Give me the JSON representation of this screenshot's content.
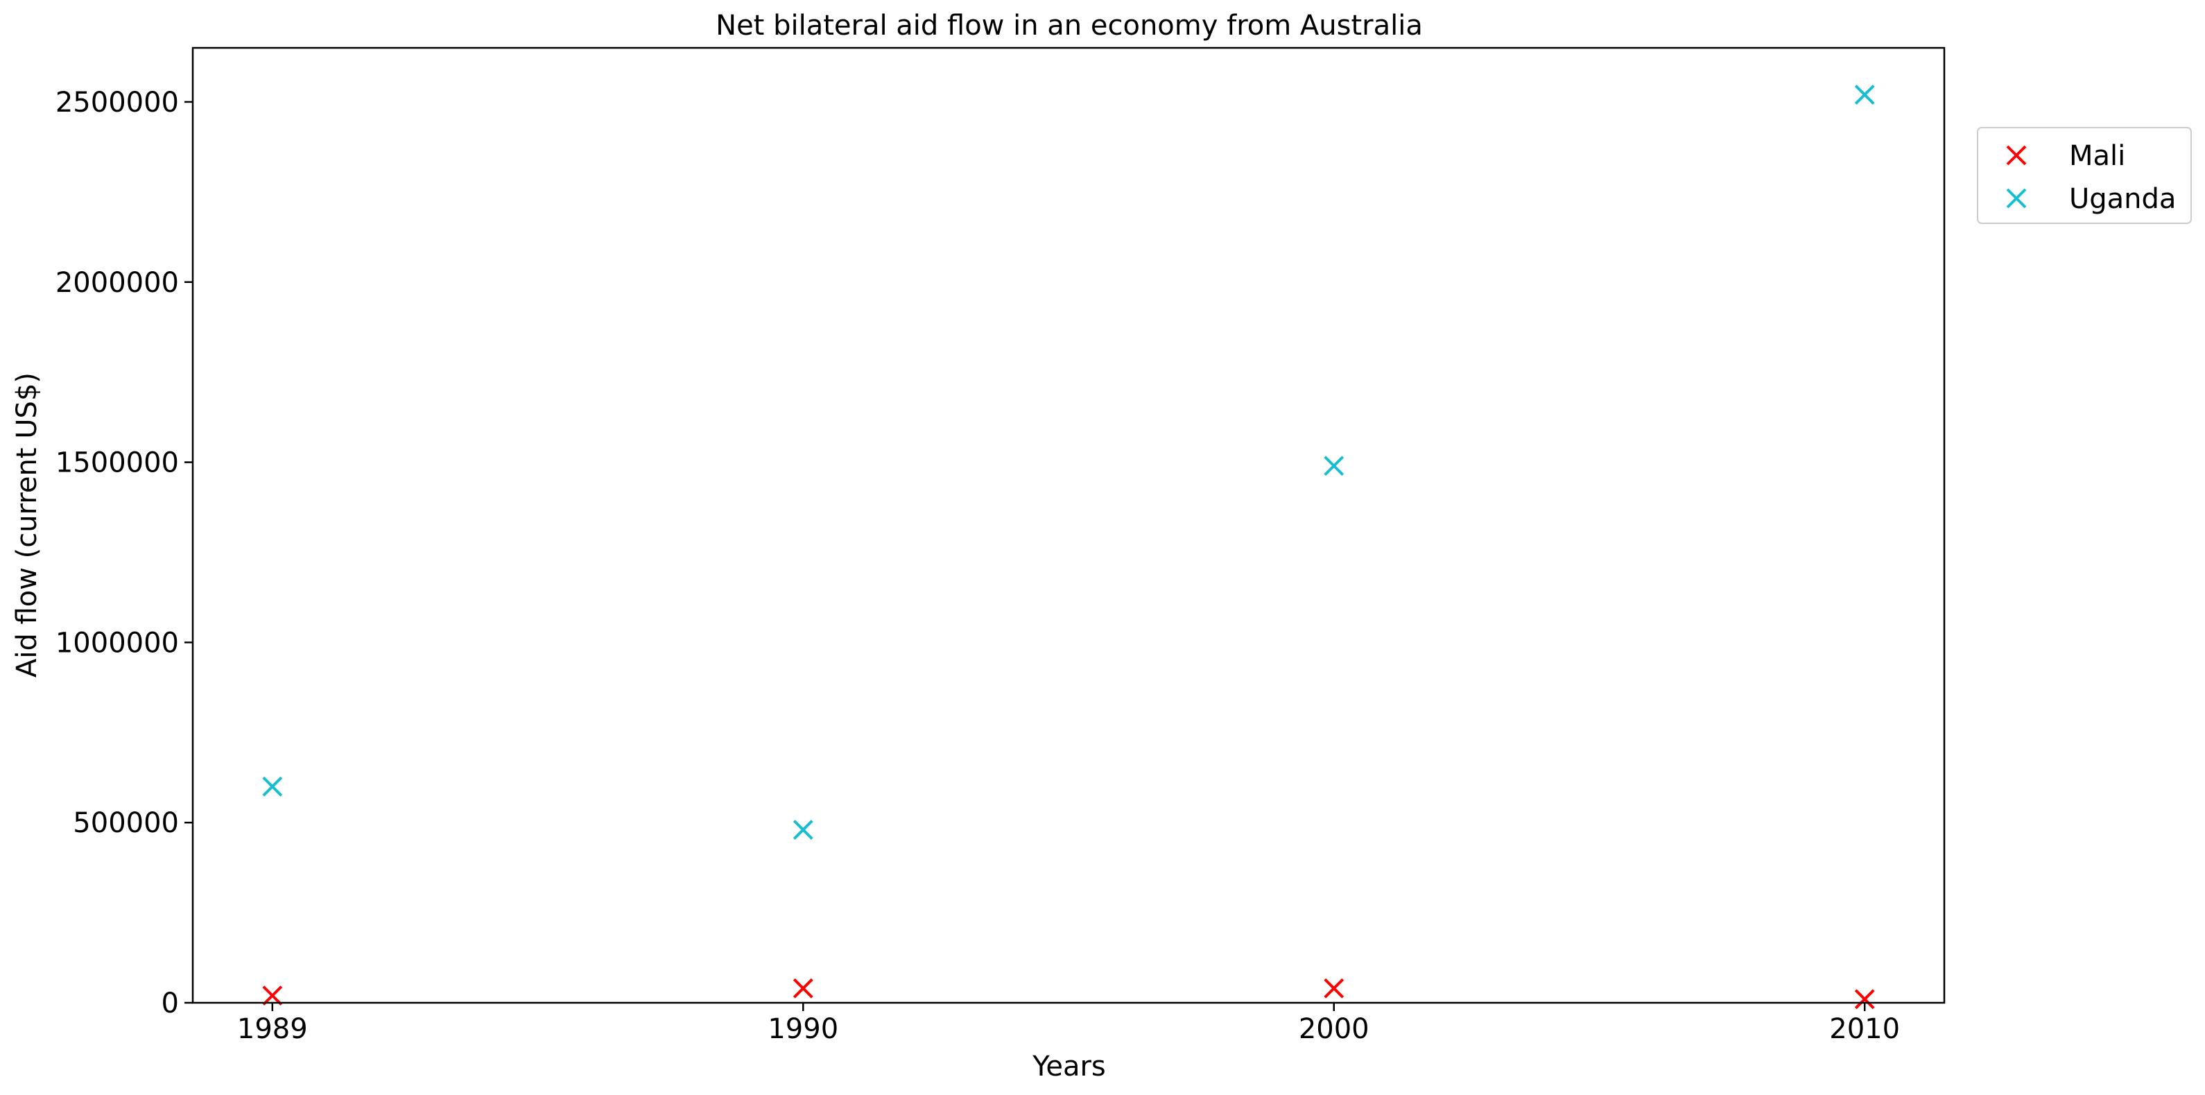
{
  "chart_data": {
    "type": "scatter",
    "title": "Net bilateral aid flow in an economy from Australia",
    "xlabel": "Years",
    "ylabel": "Aid flow (current US$)",
    "categories": [
      "1989",
      "1990",
      "2000",
      "2010"
    ],
    "ylim": [
      0,
      2650000
    ],
    "yticks": [
      0,
      500000,
      1000000,
      1500000,
      2000000,
      2500000
    ],
    "ytick_labels": [
      "0",
      "500000",
      "1000000",
      "1500000",
      "2000000",
      "2500000"
    ],
    "grid": false,
    "legend_position": "outside-right-top",
    "marker": "x",
    "series": [
      {
        "name": "Mali",
        "color": "#ff0000",
        "values": [
          20000,
          40000,
          40000,
          10000
        ]
      },
      {
        "name": "Uganda",
        "color": "#17becf",
        "values": [
          600000,
          480000,
          1490000,
          2520000
        ]
      }
    ]
  }
}
